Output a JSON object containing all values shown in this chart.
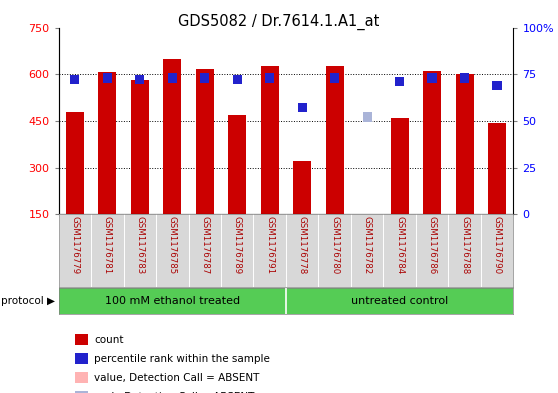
{
  "title": "GDS5082 / Dr.7614.1.A1_at",
  "samples": [
    "GSM1176779",
    "GSM1176781",
    "GSM1176783",
    "GSM1176785",
    "GSM1176787",
    "GSM1176789",
    "GSM1176791",
    "GSM1176778",
    "GSM1176780",
    "GSM1176782",
    "GSM1176784",
    "GSM1176786",
    "GSM1176788",
    "GSM1176790"
  ],
  "counts": [
    480,
    607,
    582,
    650,
    618,
    470,
    625,
    320,
    625,
    152,
    460,
    610,
    600,
    442
  ],
  "ranks": [
    72,
    73,
    72,
    73,
    73,
    72,
    73,
    57,
    73,
    52,
    71,
    73,
    73,
    69
  ],
  "absent_flags": [
    false,
    false,
    false,
    false,
    false,
    false,
    false,
    false,
    false,
    true,
    false,
    false,
    false,
    false
  ],
  "bar_colors": [
    "#cc0000",
    "#cc0000",
    "#cc0000",
    "#cc0000",
    "#cc0000",
    "#cc0000",
    "#cc0000",
    "#cc0000",
    "#cc0000",
    "#ffb3b3",
    "#cc0000",
    "#cc0000",
    "#cc0000",
    "#cc0000"
  ],
  "rank_colors": [
    "#2222cc",
    "#2222cc",
    "#2222cc",
    "#2222cc",
    "#2222cc",
    "#2222cc",
    "#2222cc",
    "#2222cc",
    "#2222cc",
    "#aab4d8",
    "#2222cc",
    "#2222cc",
    "#2222cc",
    "#2222cc"
  ],
  "group1_label": "100 mM ethanol treated",
  "group2_label": "untreated control",
  "group1_count": 7,
  "group2_count": 7,
  "ylim_left": [
    150,
    750
  ],
  "ylim_right": [
    0,
    100
  ],
  "yticks_left": [
    150,
    300,
    450,
    600,
    750
  ],
  "yticks_right": [
    0,
    25,
    50,
    75,
    100
  ],
  "ytick_labels_right": [
    "0",
    "25",
    "50",
    "75",
    "100%"
  ],
  "bg_color": "#d8d8d8",
  "plot_bg": "#ffffff",
  "green_bg": "#55cc55",
  "rank_marker_size": 45,
  "bar_width": 0.55,
  "legend_items": [
    {
      "label": "count",
      "color": "#cc0000"
    },
    {
      "label": "percentile rank within the sample",
      "color": "#2222cc"
    },
    {
      "label": "value, Detection Call = ABSENT",
      "color": "#ffb3b3"
    },
    {
      "label": "rank, Detection Call = ABSENT",
      "color": "#aab4d8"
    }
  ]
}
